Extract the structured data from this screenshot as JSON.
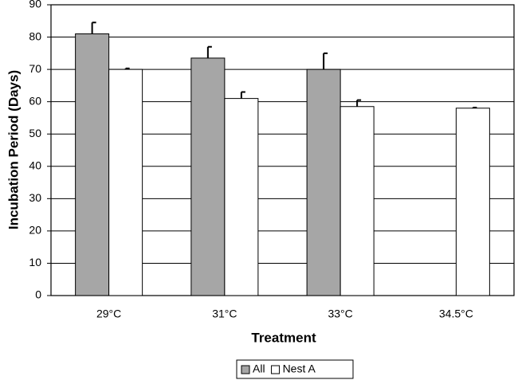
{
  "chart_data": {
    "type": "bar",
    "x_label": "Treatment",
    "y_label": "Incubation Period (Days)",
    "categories": [
      "29°C",
      "31°C",
      "33°C",
      "34.5°C"
    ],
    "series": [
      {
        "name": "All",
        "color": "#a6a6a6",
        "values": [
          81,
          73.5,
          70,
          null
        ],
        "errors": [
          3.5,
          3.5,
          5,
          null
        ]
      },
      {
        "name": "Nest A",
        "color": "#ffffff",
        "values": [
          70,
          61,
          58.5,
          58
        ],
        "errors": [
          0.3,
          2,
          2,
          0.2
        ]
      }
    ],
    "ylim": [
      0,
      90
    ],
    "yticks": [
      0,
      10,
      20,
      30,
      40,
      50,
      60,
      70,
      80,
      90
    ],
    "grid": true,
    "legend": "bottom"
  }
}
